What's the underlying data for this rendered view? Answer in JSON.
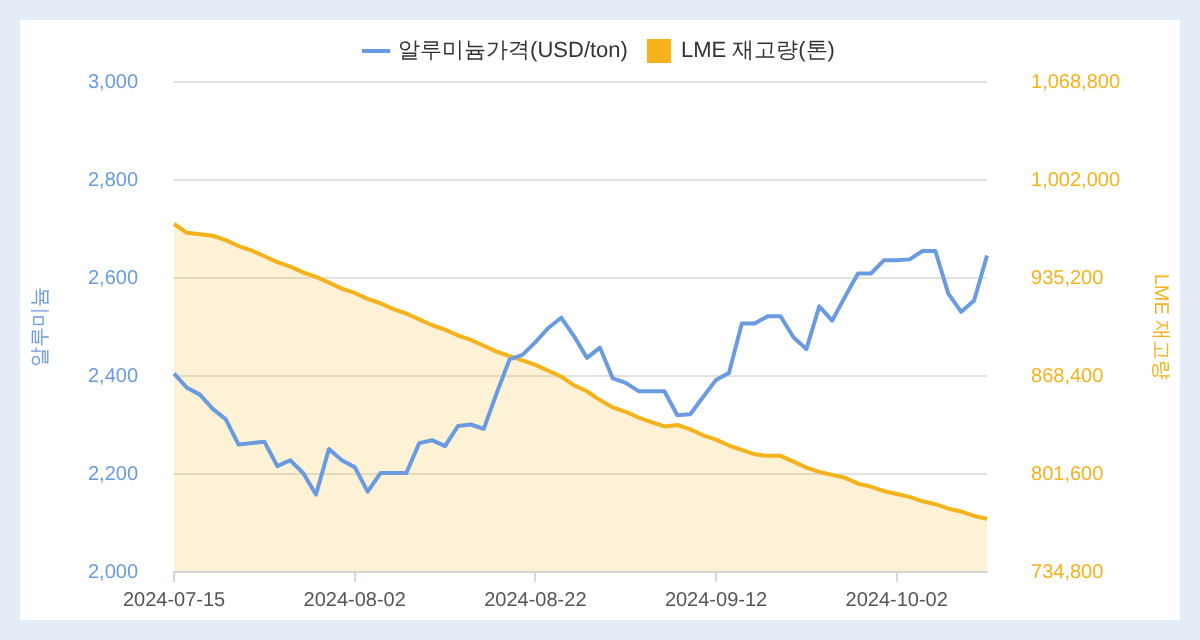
{
  "chart_data": {
    "type": "line",
    "categories": [
      "2024-07-15",
      null,
      null,
      null,
      null,
      null,
      null,
      null,
      null,
      null,
      null,
      null,
      null,
      null,
      "2024-08-02",
      null,
      null,
      null,
      null,
      null,
      null,
      null,
      null,
      null,
      null,
      null,
      null,
      null,
      "2024-08-22",
      null,
      null,
      null,
      null,
      null,
      null,
      null,
      null,
      null,
      null,
      null,
      null,
      null,
      "2024-09-12",
      null,
      null,
      null,
      null,
      null,
      null,
      null,
      null,
      null,
      null,
      null,
      null,
      null,
      "2024-10-02",
      null,
      null,
      null,
      null,
      null,
      null,
      null
    ],
    "series": [
      {
        "name": "알루미늄가격(USD/ton)",
        "type": "line",
        "color": "#6a9be0",
        "values": [
          2405,
          2376,
          2362,
          2333,
          2312,
          2260,
          2263,
          2266,
          2216,
          2228,
          2202,
          2158,
          2251,
          2228,
          2214,
          2164,
          2202,
          2202,
          2202,
          2263,
          2269,
          2257,
          2298,
          2301,
          2292,
          2365,
          2434,
          2443,
          2469,
          2498,
          2519,
          2481,
          2437,
          2458,
          2395,
          2386,
          2369,
          2369,
          2369,
          2320,
          2322,
          2357,
          2392,
          2406,
          2507,
          2507,
          2522,
          2522,
          2479,
          2455,
          2542,
          2513,
          2562,
          2609,
          2609,
          2636,
          2636,
          2638,
          2655,
          2655,
          2568,
          2531,
          2554,
          2646
        ]
      },
      {
        "name": "LME 재고량(톤)",
        "type": "area",
        "axis": "y2",
        "color": "#f5b21b",
        "values": [
          972000,
          966000,
          965000,
          964000,
          961000,
          957000,
          954000,
          950000,
          946000,
          943000,
          939000,
          936000,
          932000,
          928000,
          925000,
          921000,
          918000,
          914000,
          911000,
          907000,
          903000,
          900000,
          896000,
          893000,
          889000,
          885000,
          882000,
          879000,
          876000,
          872000,
          868000,
          862000,
          858000,
          852000,
          847000,
          844000,
          840000,
          837000,
          834000,
          835000,
          832000,
          828000,
          825000,
          821000,
          818000,
          815000,
          814000,
          814000,
          810000,
          806000,
          803000,
          801000,
          799000,
          795000,
          793000,
          790000,
          788000,
          786000,
          783000,
          781000,
          778000,
          776000,
          773000,
          771000
        ]
      }
    ],
    "ylabel": "알루미늄",
    "y2label": "LME 재고량",
    "ylim": [
      2000,
      3000
    ],
    "yticks": [
      {
        "value": 2000,
        "label": "2,000"
      },
      {
        "value": 2200,
        "label": "2,200"
      },
      {
        "value": 2400,
        "label": "2,400"
      },
      {
        "value": 2600,
        "label": "2,600"
      },
      {
        "value": 2800,
        "label": "2,800"
      },
      {
        "value": 3000,
        "label": "3,000"
      }
    ],
    "y2lim": [
      734800,
      1068800
    ],
    "y2ticks": [
      {
        "value": 734800,
        "label": "734,800"
      },
      {
        "value": 801600,
        "label": "801,600"
      },
      {
        "value": 868400,
        "label": "868,400"
      },
      {
        "value": 935200,
        "label": "935,200"
      },
      {
        "value": 1002000,
        "label": "1,002,000"
      },
      {
        "value": 1068800,
        "label": "1,068,800"
      }
    ],
    "grid": "y",
    "legend": "top",
    "marker": "none"
  }
}
